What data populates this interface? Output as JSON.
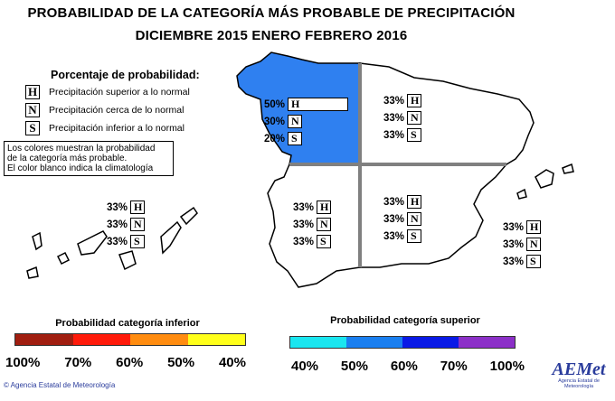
{
  "title": {
    "line1": "PROBABILIDAD DE LA CATEGORÍA MÁS PROBABLE DE PRECIPITACIÓN",
    "line2": "DICIEMBRE 2015  ENERO  FEBRERO 2016"
  },
  "legend": {
    "heading": "Porcentaje de probabilidad:",
    "items": [
      {
        "letter": "H",
        "text": "Precipitación superior a lo normal"
      },
      {
        "letter": "N",
        "text": "Precipitación cerca de lo normal"
      },
      {
        "letter": "S",
        "text": "Precipitación inferior a lo normal"
      }
    ],
    "note": [
      "Los colores muestran la probabilidad",
      "de la categoría más probable.",
      "El color blanco indica la climatología"
    ]
  },
  "regions": [
    {
      "id": "northwest",
      "fill": "#2f80f0",
      "values": [
        {
          "pct": "50%",
          "cat": "H",
          "prob": 50
        },
        {
          "pct": "30%",
          "cat": "N",
          "prob": 30
        },
        {
          "pct": "20%",
          "cat": "S",
          "prob": 20
        }
      ]
    },
    {
      "id": "northeast",
      "fill": "#ffffff",
      "values": [
        {
          "pct": "33%",
          "cat": "H",
          "prob": 33
        },
        {
          "pct": "33%",
          "cat": "N",
          "prob": 33
        },
        {
          "pct": "33%",
          "cat": "S",
          "prob": 33
        }
      ]
    },
    {
      "id": "southwest",
      "fill": "#ffffff",
      "values": [
        {
          "pct": "33%",
          "cat": "H",
          "prob": 33
        },
        {
          "pct": "33%",
          "cat": "N",
          "prob": 33
        },
        {
          "pct": "33%",
          "cat": "S",
          "prob": 33
        }
      ]
    },
    {
      "id": "southeast",
      "fill": "#ffffff",
      "values": [
        {
          "pct": "33%",
          "cat": "H",
          "prob": 33
        },
        {
          "pct": "33%",
          "cat": "N",
          "prob": 33
        },
        {
          "pct": "33%",
          "cat": "S",
          "prob": 33
        }
      ]
    },
    {
      "id": "canarias",
      "fill": "#ffffff",
      "values": [
        {
          "pct": "33%",
          "cat": "H",
          "prob": 33
        },
        {
          "pct": "33%",
          "cat": "N",
          "prob": 33
        },
        {
          "pct": "33%",
          "cat": "S",
          "prob": 33
        }
      ]
    },
    {
      "id": "baleares",
      "fill": "#ffffff",
      "values": [
        {
          "pct": "33%",
          "cat": "H",
          "prob": 33
        },
        {
          "pct": "33%",
          "cat": "N",
          "prob": 33
        },
        {
          "pct": "33%",
          "cat": "S",
          "prob": 33
        }
      ]
    }
  ],
  "scale_inferior": {
    "label": "Probabilidad categoría inferior",
    "colors": [
      "#a01e10",
      "#ff1a0a",
      "#ff8c10",
      "#ffff1a"
    ],
    "ticks": [
      "100%",
      "70%",
      "60%",
      "50%",
      "40%"
    ]
  },
  "scale_superior": {
    "label": "Probabilidad categoría superior",
    "colors": [
      "#1ae6f0",
      "#1a7ff0",
      "#0a1ae6",
      "#8c30c8"
    ],
    "ticks": [
      "40%",
      "50%",
      "60%",
      "70%",
      "100%"
    ]
  },
  "footer": {
    "copyright": "© Agencia Estatal de Meteorología"
  },
  "logo": {
    "text": "AEMet",
    "subtitle": "Agencia Estatal de Meteorología"
  }
}
